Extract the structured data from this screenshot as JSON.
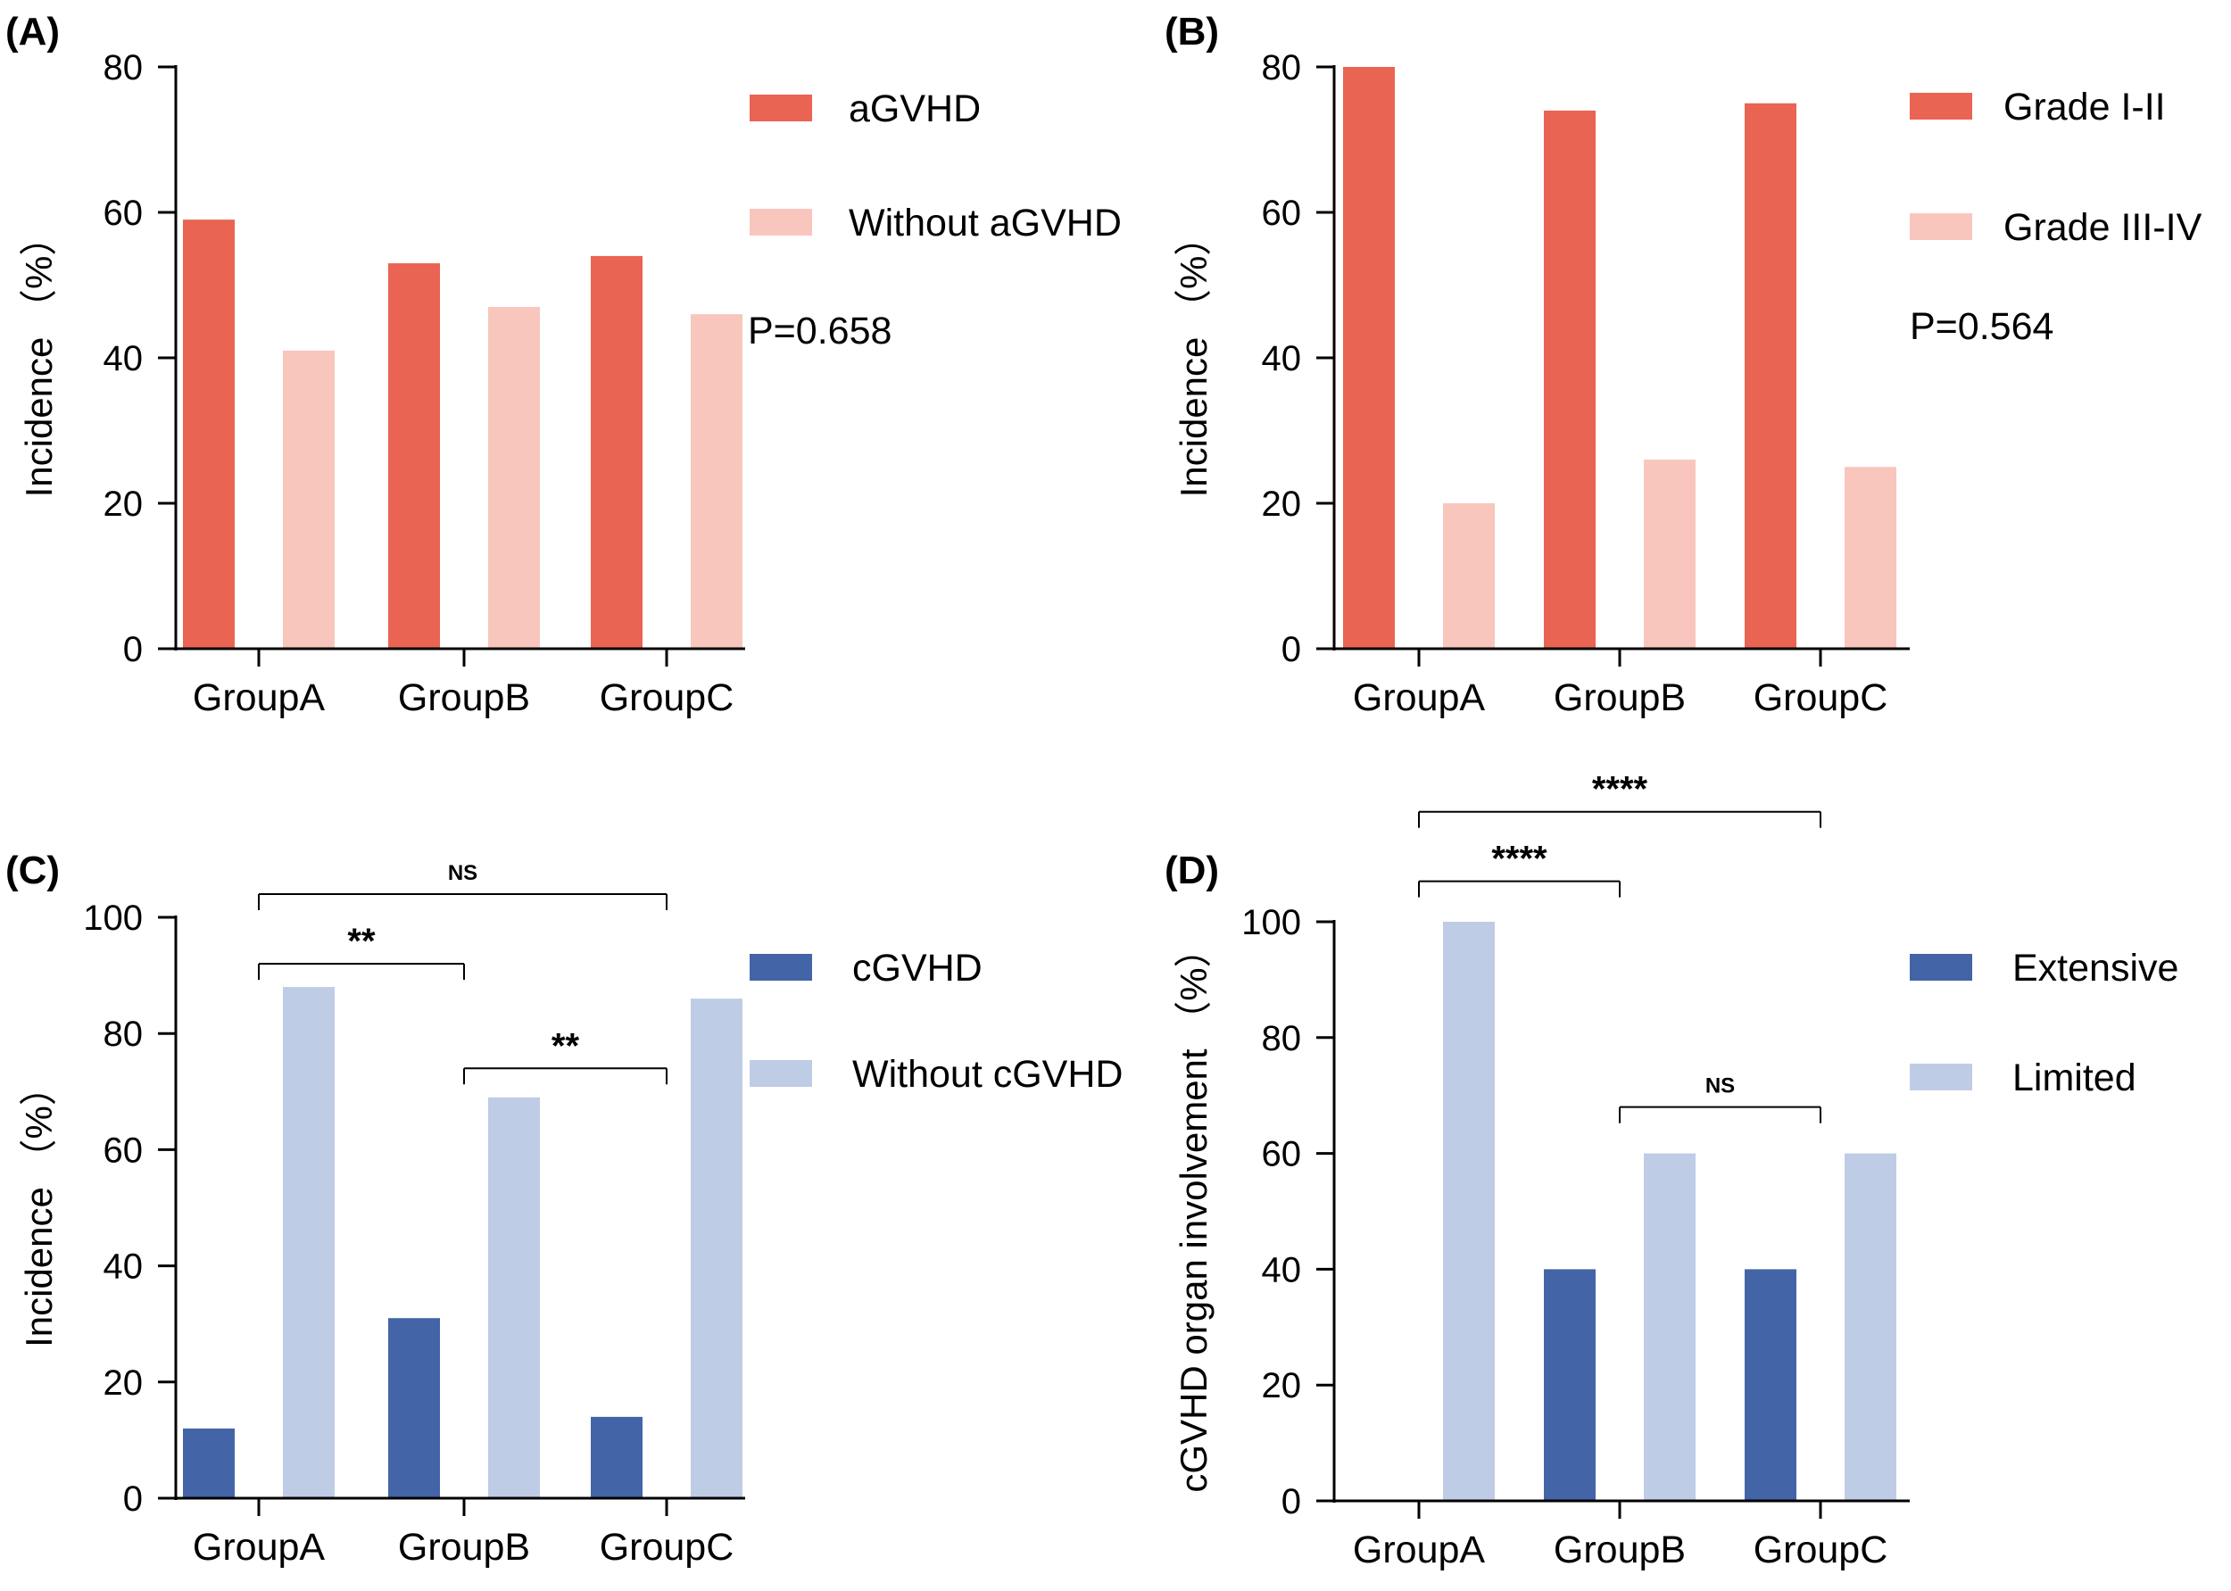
{
  "chart_data": [
    {
      "type": "bar",
      "panel_label": "(A)",
      "categories": [
        "GroupA",
        "GroupB",
        "GroupC"
      ],
      "series": [
        {
          "name": "aGVHD",
          "values": [
            59,
            53,
            54
          ],
          "color": "#E96452"
        },
        {
          "name": "Without aGVHD",
          "values": [
            41,
            47,
            46
          ],
          "color": "#F8C6BD"
        }
      ],
      "ylabel": "Incidence （%）",
      "ylim": [
        0,
        80
      ],
      "yticks": [
        0,
        20,
        40,
        60,
        80
      ],
      "annotation": "P=0.658",
      "legend_position": "right",
      "significance": []
    },
    {
      "type": "bar",
      "panel_label": "(B)",
      "categories": [
        "GroupA",
        "GroupB",
        "GroupC"
      ],
      "series": [
        {
          "name": "Grade I-II",
          "values": [
            80,
            74,
            75
          ],
          "color": "#E96452"
        },
        {
          "name": "Grade III-IV",
          "values": [
            20,
            26,
            25
          ],
          "color": "#F8C6BD"
        }
      ],
      "ylabel": "Incidence （%）",
      "ylim": [
        0,
        80
      ],
      "yticks": [
        0,
        20,
        40,
        60,
        80
      ],
      "annotation": "P=0.564",
      "legend_position": "right",
      "significance": []
    },
    {
      "type": "bar",
      "panel_label": "(C)",
      "categories": [
        "GroupA",
        "GroupB",
        "GroupC"
      ],
      "series": [
        {
          "name": "cGVHD",
          "values": [
            12,
            31,
            14
          ],
          "color": "#4464A8"
        },
        {
          "name": "Without cGVHD",
          "values": [
            88,
            69,
            86
          ],
          "color": "#BFCCE5"
        }
      ],
      "ylabel": "Incidence （%）",
      "ylim": [
        0,
        100
      ],
      "yticks": [
        0,
        20,
        40,
        60,
        80,
        100
      ],
      "annotation": "",
      "legend_position": "right",
      "significance": [
        {
          "from": "GroupA",
          "to": "GroupC",
          "label": "NS",
          "level": 104
        },
        {
          "from": "GroupA",
          "to": "GroupB",
          "label": "**",
          "level": 92
        },
        {
          "from": "GroupB",
          "to": "GroupC",
          "label": "**",
          "level": 74
        }
      ]
    },
    {
      "type": "bar",
      "panel_label": "(D)",
      "categories": [
        "GroupA",
        "GroupB",
        "GroupC"
      ],
      "series": [
        {
          "name": "Extensive",
          "values": [
            0,
            40,
            40
          ],
          "color": "#4464A8"
        },
        {
          "name": "Limited",
          "values": [
            100,
            60,
            60
          ],
          "color": "#BFCCE5"
        }
      ],
      "ylabel": "cGVHD organ involvement （%）",
      "ylim": [
        0,
        100
      ],
      "yticks": [
        0,
        20,
        40,
        60,
        80,
        100
      ],
      "annotation": "",
      "legend_position": "right",
      "significance": [
        {
          "from": "GroupA",
          "to": "GroupC",
          "label": "****",
          "level": 119
        },
        {
          "from": "GroupA",
          "to": "GroupB",
          "label": "****",
          "level": 107
        },
        {
          "from": "GroupB",
          "to": "GroupC",
          "label": "NS",
          "level": 68
        }
      ]
    }
  ]
}
